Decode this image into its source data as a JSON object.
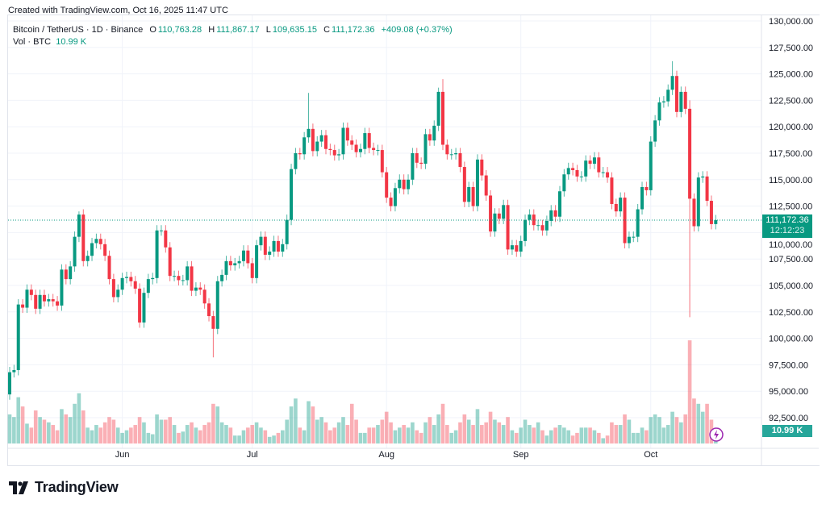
{
  "header": {
    "credit": "Created with TradingView.com, Oct 16, 2025 11:47 UTC",
    "symbol": "Bitcoin / TetherUS · 1D · Binance",
    "o_label": "O",
    "o": "110,763.28",
    "h_label": "H",
    "h": "111,867.17",
    "l_label": "L",
    "l": "109,635.15",
    "c_label": "C",
    "c": "111,172.36",
    "change": "+409.08 (+0.37%)",
    "vol_label": "Vol · BTC",
    "vol_value": "10.99 K"
  },
  "price_tag": {
    "price": "111,172.36",
    "countdown": "12:12:23"
  },
  "volume_tag": "10.99 K",
  "logo": "TradingView",
  "colors": {
    "up": "#089981",
    "down": "#f23645",
    "grid": "#f0f3fa",
    "lightning": "#9c27b0"
  },
  "chart_data": {
    "type": "candlestick",
    "interval": "1D",
    "start_date": "2025-05-06",
    "end_date": "2025-10-16",
    "units": "thousand USDT (price), thousand BTC (volume)",
    "first_open_k": 94.7,
    "close_k": [
      96.8,
      97.0,
      103.2,
      102.9,
      104.6,
      104.1,
      102.8,
      104.1,
      103.5,
      103.7,
      103.5,
      103.1,
      106.5,
      105.6,
      106.8,
      109.6,
      111.7,
      107.3,
      107.8,
      109.0,
      109.4,
      108.9,
      107.8,
      105.6,
      103.9,
      104.6,
      105.7,
      105.8,
      105.4,
      104.7,
      101.5,
      104.3,
      105.6,
      105.7,
      110.2,
      110.2,
      108.6,
      105.9,
      105.9,
      105.5,
      105.5,
      106.8,
      104.5,
      104.8,
      104.6,
      103.3,
      102.1,
      100.9,
      105.4,
      106.0,
      107.3,
      106.9,
      107.1,
      107.3,
      108.3,
      107.1,
      105.7,
      108.8,
      109.6,
      107.9,
      108.2,
      109.2,
      108.2,
      108.9,
      111.2,
      116.0,
      117.5,
      117.4,
      119.0,
      119.8,
      117.7,
      118.6,
      119.2,
      117.9,
      117.8,
      117.3,
      117.4,
      119.9,
      118.7,
      118.3,
      117.6,
      117.9,
      119.4,
      118.0,
      117.8,
      117.8,
      115.7,
      113.3,
      112.5,
      114.2,
      115.0,
      114.1,
      115.0,
      117.5,
      116.6,
      116.5,
      119.3,
      118.7,
      120.1,
      123.3,
      118.3,
      117.4,
      117.4,
      117.5,
      116.2,
      112.9,
      114.3,
      112.5,
      116.9,
      115.4,
      113.5,
      110.1,
      111.8,
      111.3,
      112.6,
      108.4,
      108.8,
      108.2,
      109.2,
      111.2,
      111.7,
      110.7,
      110.7,
      110.2,
      111.1,
      112.1,
      111.5,
      113.9,
      115.5,
      116.1,
      115.9,
      115.3,
      115.3,
      116.8,
      116.5,
      117.1,
      115.7,
      115.7,
      115.2,
      112.7,
      112.0,
      113.3,
      109.0,
      109.6,
      109.6,
      112.2,
      114.3,
      114.0,
      118.6,
      120.6,
      122.3,
      122.4,
      123.5,
      124.8,
      121.4,
      123.3,
      121.7,
      113.2,
      110.6,
      115.2,
      115.3,
      113.0,
      110.8,
      111.17
    ],
    "volume_k": [
      22,
      20,
      35,
      28,
      15,
      12,
      25,
      20,
      18,
      16,
      14,
      10,
      26,
      22,
      20,
      30,
      38,
      25,
      12,
      10,
      14,
      12,
      16,
      20,
      18,
      12,
      8,
      10,
      12,
      14,
      20,
      16,
      8,
      7,
      22,
      18,
      18,
      20,
      14,
      8,
      9,
      14,
      16,
      12,
      10,
      14,
      16,
      30,
      28,
      16,
      14,
      12,
      6,
      6,
      10,
      12,
      14,
      16,
      12,
      10,
      5,
      6,
      8,
      10,
      18,
      28,
      34,
      12,
      10,
      32,
      28,
      18,
      20,
      16,
      10,
      12,
      16,
      20,
      14,
      30,
      18,
      8,
      8,
      12,
      12,
      14,
      18,
      24,
      16,
      10,
      12,
      14,
      12,
      16,
      10,
      8,
      16,
      20,
      14,
      22,
      30,
      14,
      8,
      10,
      16,
      22,
      18,
      14,
      26,
      14,
      16,
      24,
      18,
      16,
      14,
      20,
      10,
      8,
      12,
      18,
      14,
      12,
      16,
      10,
      6,
      10,
      12,
      14,
      12,
      10,
      6,
      8,
      12,
      12,
      12,
      10,
      8,
      4,
      6,
      16,
      14,
      14,
      22,
      18,
      8,
      8,
      12,
      10,
      20,
      22,
      20,
      12,
      14,
      24,
      20,
      16,
      22,
      78,
      34,
      30,
      24,
      30,
      18,
      11
    ],
    "wick_extremes_k": [
      {
        "date": "2025-05-22",
        "high": 112.0
      },
      {
        "date": "2025-06-22",
        "low": 98.2
      },
      {
        "date": "2025-07-14",
        "high": 123.2
      },
      {
        "date": "2025-08-13",
        "high": 123.7
      },
      {
        "date": "2025-08-14",
        "high": 124.5
      },
      {
        "date": "2025-10-06",
        "high": 126.2
      },
      {
        "date": "2025-10-10",
        "high": 122.5,
        "low": 102.0
      }
    ],
    "y_ticks": [
      "130,000.00",
      "127,500.00",
      "125,000.00",
      "122,500.00",
      "120,000.00",
      "117,500.00",
      "115,000.00",
      "112,500.00",
      "110,000.00",
      "107,500.00",
      "105,000.00",
      "102,500.00",
      "100,000.00",
      "97,500.00",
      "95,000.00",
      "92,500.00"
    ],
    "x_ticks": [
      {
        "label": "Jun",
        "date": "2025-06-01"
      },
      {
        "label": "Jul",
        "date": "2025-07-01"
      },
      {
        "label": "Aug",
        "date": "2025-08-01"
      },
      {
        "label": "Sep",
        "date": "2025-09-01"
      },
      {
        "label": "Oct",
        "date": "2025-10-01"
      }
    ],
    "ylim": [
      92500,
      130000
    ],
    "last_price": 111172.36
  }
}
